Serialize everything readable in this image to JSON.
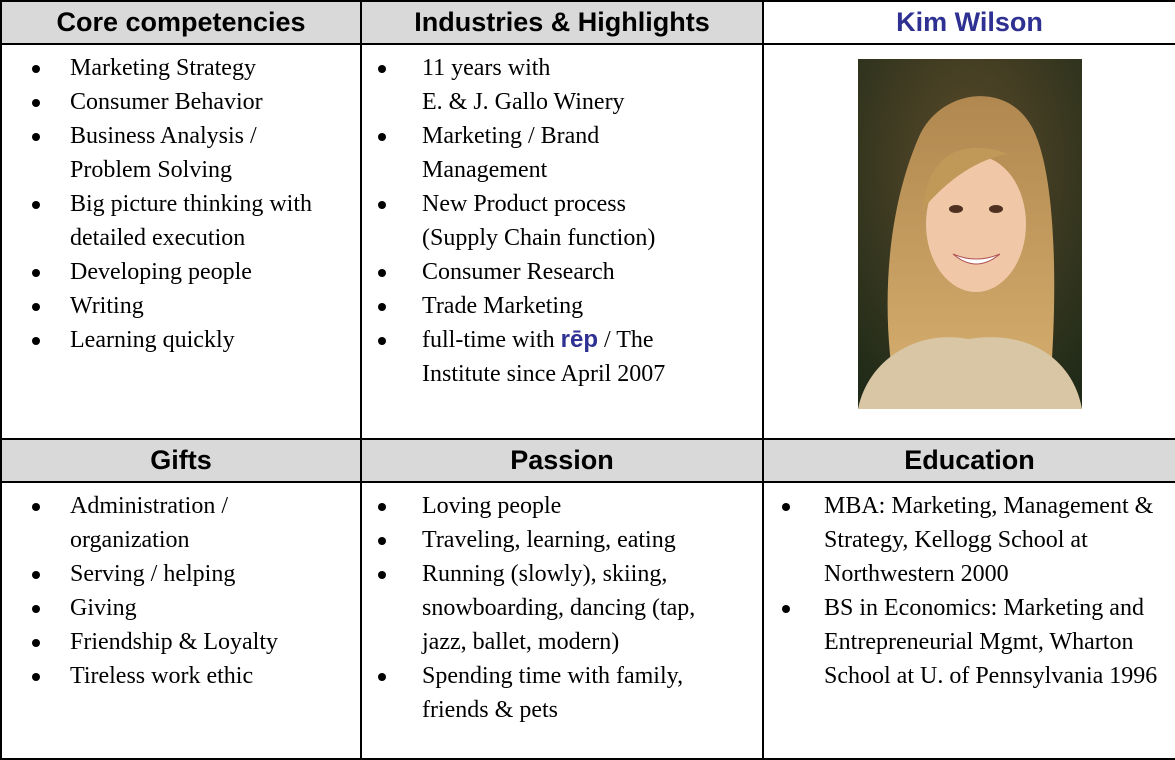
{
  "headers": {
    "core": "Core competencies",
    "industries": "Industries & Highlights",
    "name": "Kim Wilson",
    "gifts": "Gifts",
    "passion": "Passion",
    "education": "Education"
  },
  "core": [
    "Marketing Strategy",
    "Consumer Behavior",
    "Business Analysis / Problem Solving",
    "Big picture thinking with detailed execution",
    "Developing people",
    "Writing",
    "Learning quickly"
  ],
  "industries": [
    [
      "11 years with",
      "E. & J. Gallo Winery"
    ],
    "Marketing / Brand Management",
    "New Product process (Supply Chain function)",
    "Consumer Research",
    "Trade Marketing",
    {
      "before": "full-time with",
      "brand": "rēp",
      "after": "/ The Institute since April 2007"
    }
  ],
  "gifts": [
    "Administration / organization",
    "Serving / helping",
    "Giving",
    "Friendship & Loyalty",
    "Tireless work ethic"
  ],
  "passion": [
    "Loving people",
    "Traveling, learning, eating",
    "Running (slowly), skiing, snowboarding, dancing (tap, jazz, ballet, modern)",
    "Spending time with family, friends & pets"
  ],
  "education": [
    "MBA: Marketing, Management & Strategy, Kellogg School at Northwestern 2000",
    "BS in Economics: Marketing and Entrepreneurial Mgmt, Wharton School at U. of Pennsylvania 1996"
  ]
}
